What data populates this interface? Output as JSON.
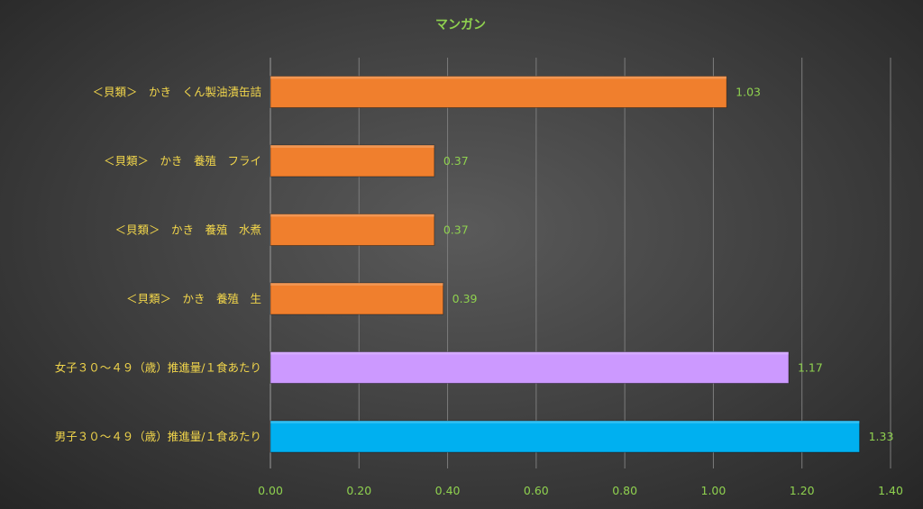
{
  "chart_data": {
    "type": "bar",
    "orientation": "horizontal",
    "title": "マンガン",
    "xlabel": "",
    "ylabel": "",
    "xlim": [
      0,
      1.4
    ],
    "x_ticks": [
      "0.00",
      "0.20",
      "0.40",
      "0.60",
      "0.80",
      "1.00",
      "1.20",
      "1.40"
    ],
    "grid": true,
    "legend": "none",
    "categories": [
      "＜貝類＞　かき　くん製油漬缶詰",
      "＜貝類＞　かき　養殖　フライ",
      "＜貝類＞　かき　養殖　水煮",
      "＜貝類＞　かき　養殖　生",
      "女子３０～４９（歳）推進量/１食あたり",
      "男子３０～４９（歳）推進量/１食あたり"
    ],
    "values": [
      1.03,
      0.37,
      0.37,
      0.39,
      1.17,
      1.33
    ],
    "value_labels": [
      "1.03",
      "0.37",
      "0.37",
      "0.39",
      "1.17",
      "1.33"
    ],
    "bar_colors": [
      "#f07f2d",
      "#f07f2d",
      "#f07f2d",
      "#f07f2d",
      "#cc99ff",
      "#00b0f0"
    ]
  }
}
